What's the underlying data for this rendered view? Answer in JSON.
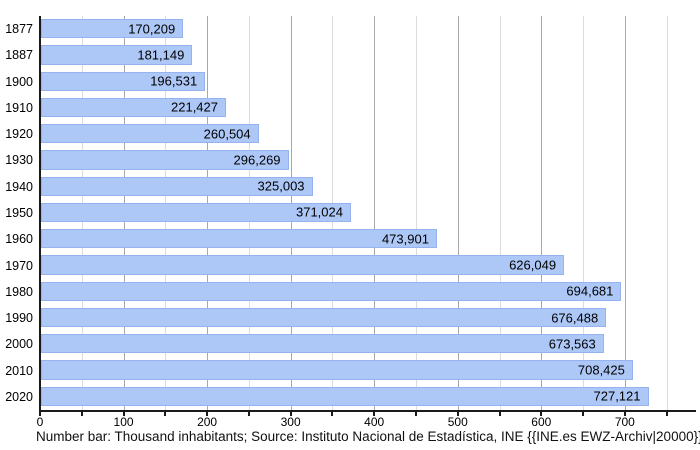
{
  "chart_data": {
    "type": "bar",
    "orientation": "horizontal",
    "title": "",
    "xlabel": "",
    "ylabel": "",
    "categories": [
      "1877",
      "1887",
      "1900",
      "1910",
      "1920",
      "1930",
      "1940",
      "1950",
      "1960",
      "1970",
      "1980",
      "1990",
      "2000",
      "2010",
      "2020"
    ],
    "values": [
      170209,
      181149,
      196531,
      221427,
      260504,
      296269,
      325003,
      371024,
      473901,
      626049,
      694681,
      676488,
      673563,
      708425,
      727121
    ],
    "value_labels": [
      "170,209",
      "181,149",
      "196,531",
      "221,427",
      "260,504",
      "296,269",
      "325,003",
      "371,024",
      "473,901",
      "626,049",
      "694,681",
      "676,488",
      "673,563",
      "708,425",
      "727,121"
    ],
    "unit": "Thousand inhabitants",
    "x_axis": {
      "tick_labels": [
        "0",
        "100",
        "200",
        "300",
        "400",
        "500",
        "600",
        "700"
      ],
      "tick_values": [
        0,
        100,
        200,
        300,
        400,
        500,
        600,
        700
      ],
      "minor_step": 50,
      "max_gridline": 750,
      "grid": true
    },
    "legend": null,
    "caption": "Number bar: Thousand inhabitants; Source: Instituto Nacional de Estadística, INE {{INE.es EWZ-Archiv|20000}}",
    "colors": {
      "bar_fill": "#adc7f6",
      "bar_border": "#96b3ef",
      "grid_major": "#a8a8a8",
      "grid_minor": "#dcdcdc",
      "axis": "#1a1a1a",
      "text": "#000000",
      "caption_text": "#111111",
      "background": "#ffffff"
    }
  }
}
